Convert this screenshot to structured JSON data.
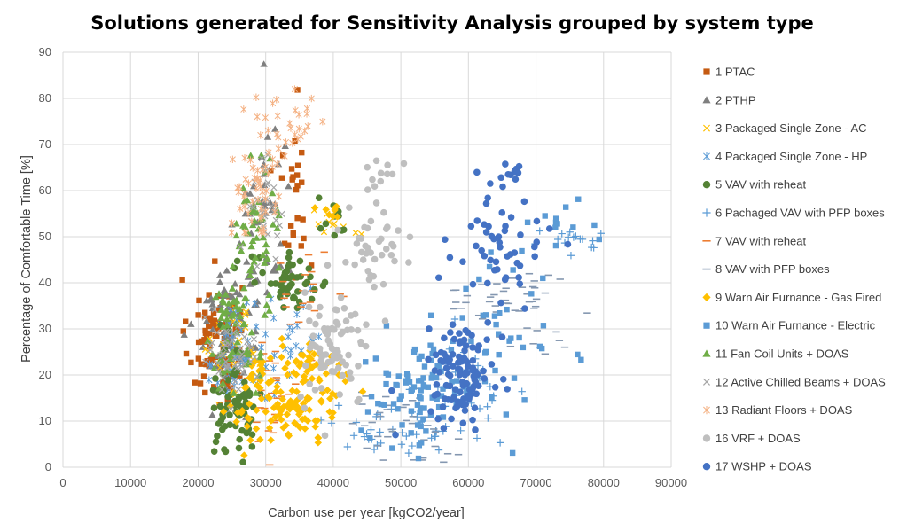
{
  "chart_data": {
    "type": "scatter",
    "title": "Solutions generated for Sensitivity Analysis grouped by system type",
    "xlabel": "Carbon use per year [kgCO2/year]",
    "ylabel": "Percentage of Comfortable Time [%]",
    "xlim": [
      0,
      90000
    ],
    "ylim": [
      0,
      90
    ],
    "xticks": [
      "0",
      "10000",
      "20000",
      "30000",
      "40000",
      "50000",
      "60000",
      "70000",
      "80000",
      "90000"
    ],
    "yticks": [
      "0",
      "10",
      "20",
      "30",
      "40",
      "50",
      "60",
      "70",
      "80",
      "90"
    ],
    "grid": true,
    "legend_position": "right",
    "series": [
      {
        "name": "1 PTAC",
        "marker": "square",
        "color": "#c55a11",
        "clusters": [
          [
            22500,
            27,
            2000,
            7,
            90
          ],
          [
            34000,
            62,
            1500,
            10,
            25
          ]
        ]
      },
      {
        "name": "2 PTHP",
        "marker": "triangle",
        "color": "#7f7f7f",
        "clusters": [
          [
            25000,
            32,
            2500,
            8,
            70
          ],
          [
            30000,
            55,
            2000,
            12,
            40
          ]
        ]
      },
      {
        "name": "3 Packaged Single Zone - AC",
        "marker": "x",
        "color": "#ffc000",
        "clusters": [
          [
            26000,
            25,
            2000,
            5,
            30
          ],
          [
            40000,
            54,
            2000,
            2,
            10
          ]
        ]
      },
      {
        "name": "4 Packaged Single Zone - HP",
        "marker": "asterisk",
        "color": "#5b9bd5",
        "clusters": [
          [
            25500,
            24,
            1500,
            6,
            50
          ],
          [
            33000,
            28,
            3000,
            8,
            30
          ]
        ]
      },
      {
        "name": "5 VAV with reheat",
        "marker": "circle",
        "color": "#548235",
        "clusters": [
          [
            25500,
            14,
            2000,
            6,
            70
          ],
          [
            33500,
            40,
            3000,
            3,
            50
          ],
          [
            40000,
            54,
            1500,
            2,
            10
          ]
        ]
      },
      {
        "name": "6 Pachaged VAV with PFP boxes",
        "marker": "plus",
        "color": "#5b9bd5",
        "clusters": [
          [
            50000,
            8,
            5000,
            3,
            40
          ],
          [
            60000,
            17,
            3000,
            5,
            30
          ],
          [
            76000,
            49,
            3500,
            1.5,
            15
          ]
        ]
      },
      {
        "name": "7 VAV with reheat",
        "marker": "dash",
        "color": "#ed7d31",
        "clusters": [
          [
            31000,
            17,
            2000,
            6,
            30
          ],
          [
            36000,
            39,
            3000,
            4,
            20
          ]
        ]
      },
      {
        "name": "8 VAV with PFP boxes",
        "marker": "dash",
        "color": "#8497b0",
        "clusters": [
          [
            50000,
            9,
            4000,
            4,
            40
          ],
          [
            66000,
            37,
            5000,
            3,
            40
          ],
          [
            70000,
            27,
            3000,
            2,
            10
          ]
        ]
      },
      {
        "name": "9 Warn Air Furnance - Gas Fired",
        "marker": "diamond",
        "color": "#ffc000",
        "clusters": [
          [
            33000,
            15,
            4000,
            5,
            120
          ],
          [
            37000,
            22,
            2500,
            2,
            30
          ],
          [
            39500,
            55,
            1500,
            1,
            8
          ]
        ]
      },
      {
        "name": "10 Warn Air Furnance - Electric",
        "marker": "square",
        "color": "#5b9bd5",
        "clusters": [
          [
            53000,
            16,
            4000,
            6,
            90
          ],
          [
            65000,
            30,
            4000,
            10,
            40
          ],
          [
            74000,
            54,
            3000,
            2,
            10
          ]
        ]
      },
      {
        "name": "11 Fan Coil Units + DOAS",
        "marker": "triangle",
        "color": "#70ad47",
        "clusters": [
          [
            25000,
            28,
            2000,
            8,
            60
          ],
          [
            29000,
            52,
            1500,
            7,
            50
          ]
        ]
      },
      {
        "name": "12 Active Chilled Beams + DOAS",
        "marker": "x",
        "color": "#a5a5a5",
        "clusters": [
          [
            25000,
            24,
            1800,
            5,
            50
          ],
          [
            30000,
            58,
            1500,
            6,
            30
          ]
        ]
      },
      {
        "name": "13 Radiant Floors + DOAS",
        "marker": "asterisk",
        "color": "#f4b183",
        "clusters": [
          [
            29000,
            62,
            2000,
            7,
            60
          ],
          [
            34500,
            75,
            1500,
            3,
            20
          ]
        ]
      },
      {
        "name": "16 VRF + DOAS",
        "marker": "circle",
        "color": "#bfbfbf",
        "clusters": [
          [
            40000,
            25,
            2500,
            6,
            80
          ],
          [
            46000,
            47,
            3000,
            5,
            40
          ],
          [
            48000,
            63,
            1500,
            2,
            10
          ]
        ]
      },
      {
        "name": "17 WSHP + DOAS",
        "marker": "circle",
        "color": "#4472c4",
        "clusters": [
          [
            59000,
            21,
            2500,
            5,
            110
          ],
          [
            64000,
            46,
            3500,
            6,
            50
          ],
          [
            66500,
            63,
            2000,
            1.5,
            12
          ]
        ]
      }
    ]
  }
}
